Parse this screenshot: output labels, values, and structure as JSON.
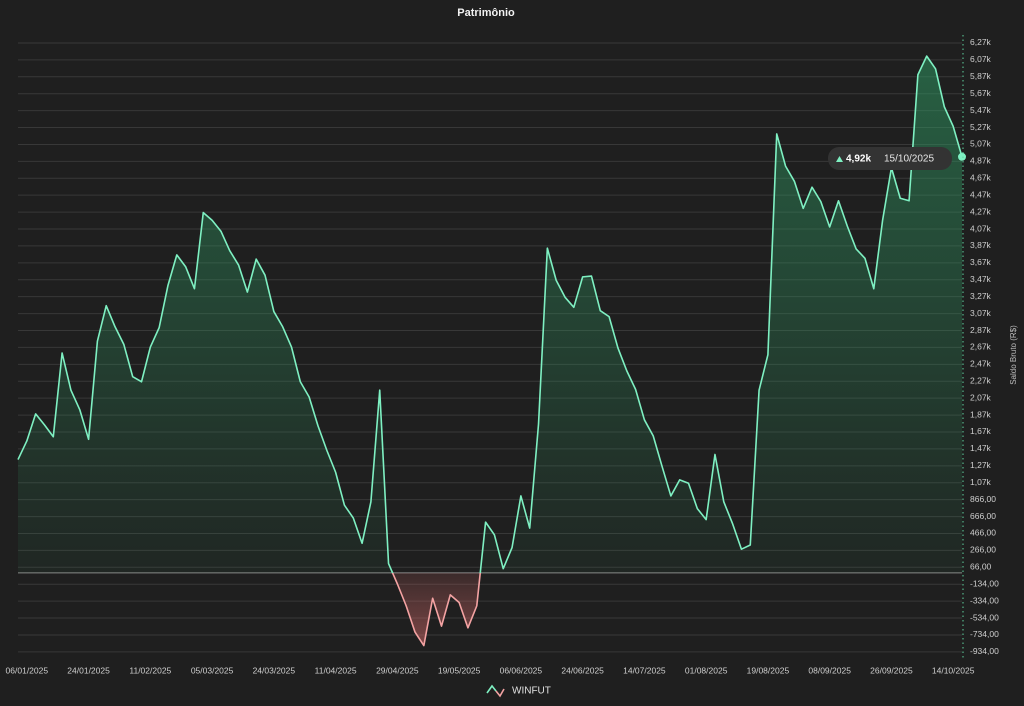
{
  "chart_data": {
    "type": "area-line",
    "title": "Patrimônio",
    "y_label": "Saldo Bruto (R$)",
    "categories": [
      null,
      "06/01/2025",
      null,
      null,
      null,
      null,
      null,
      null,
      "24/01/2025",
      null,
      null,
      null,
      null,
      null,
      null,
      "11/02/2025",
      null,
      null,
      null,
      null,
      null,
      null,
      "05/03/2025",
      null,
      null,
      null,
      null,
      null,
      null,
      "24/03/2025",
      null,
      null,
      null,
      null,
      null,
      null,
      "11/04/2025",
      null,
      null,
      null,
      null,
      null,
      null,
      "29/04/2025",
      null,
      null,
      null,
      null,
      null,
      null,
      "19/05/2025",
      null,
      null,
      null,
      null,
      null,
      null,
      "06/06/2025",
      null,
      null,
      null,
      null,
      null,
      null,
      "24/06/2025",
      null,
      null,
      null,
      null,
      null,
      null,
      "14/07/2025",
      null,
      null,
      null,
      null,
      null,
      null,
      "01/08/2025",
      null,
      null,
      null,
      null,
      null,
      null,
      "19/08/2025",
      null,
      null,
      null,
      null,
      null,
      null,
      "08/09/2025",
      null,
      null,
      null,
      null,
      null,
      null,
      "26/09/2025",
      null,
      null,
      null,
      null,
      null,
      null,
      "14/10/2025",
      null
    ],
    "series": [
      {
        "name": "WINFUT",
        "color": "#7ef0c2",
        "negative_color": "#f4a3a3",
        "values": [
          1340,
          1560,
          1880,
          1750,
          1610,
          2600,
          2160,
          1930,
          1580,
          2740,
          3160,
          2910,
          2700,
          2320,
          2260,
          2670,
          2900,
          3400,
          3760,
          3620,
          3360,
          4260,
          4170,
          4040,
          3810,
          3640,
          3320,
          3710,
          3520,
          3090,
          2910,
          2670,
          2260,
          2080,
          1740,
          1450,
          1190,
          800,
          650,
          350,
          840,
          2160,
          110,
          -130,
          -390,
          -700,
          -860,
          -300,
          -630,
          -260,
          -350,
          -650,
          -390,
          600,
          450,
          50,
          300,
          910,
          530,
          1760,
          3840,
          3460,
          3260,
          3140,
          3500,
          3510,
          3100,
          3030,
          2660,
          2390,
          2170,
          1810,
          1620,
          1260,
          910,
          1100,
          1060,
          760,
          630,
          1400,
          840,
          580,
          280,
          330,
          2160,
          2580,
          5190,
          4810,
          4630,
          4310,
          4560,
          4390,
          4090,
          4400,
          4100,
          3830,
          3720,
          3360,
          4170,
          4790,
          4430,
          4400,
          5890,
          6110,
          5960,
          5510,
          5280,
          4920
        ]
      }
    ],
    "ylim": [
      -1030,
      6360
    ],
    "yticks": [
      {
        "value": -934,
        "label": "-934,00"
      },
      {
        "value": -734,
        "label": "-734,00"
      },
      {
        "value": -534,
        "label": "-534,00"
      },
      {
        "value": -334,
        "label": "-334,00"
      },
      {
        "value": -134,
        "label": "-134,00"
      },
      {
        "value": 66,
        "label": "66,00"
      },
      {
        "value": 266,
        "label": "266,00"
      },
      {
        "value": 466,
        "label": "466,00"
      },
      {
        "value": 666,
        "label": "666,00"
      },
      {
        "value": 866,
        "label": "866,00"
      },
      {
        "value": 1066,
        "label": "1,07k"
      },
      {
        "value": 1266,
        "label": "1,27k"
      },
      {
        "value": 1466,
        "label": "1,47k"
      },
      {
        "value": 1666,
        "label": "1,67k"
      },
      {
        "value": 1866,
        "label": "1,87k"
      },
      {
        "value": 2066,
        "label": "2,07k"
      },
      {
        "value": 2266,
        "label": "2,27k"
      },
      {
        "value": 2466,
        "label": "2,47k"
      },
      {
        "value": 2666,
        "label": "2,67k"
      },
      {
        "value": 2866,
        "label": "2,87k"
      },
      {
        "value": 3066,
        "label": "3,07k"
      },
      {
        "value": 3266,
        "label": "3,27k"
      },
      {
        "value": 3466,
        "label": "3,47k"
      },
      {
        "value": 3666,
        "label": "3,67k"
      },
      {
        "value": 3866,
        "label": "3,87k"
      },
      {
        "value": 4066,
        "label": "4,07k"
      },
      {
        "value": 4266,
        "label": "4,27k"
      },
      {
        "value": 4466,
        "label": "4,47k"
      },
      {
        "value": 4666,
        "label": "4,67k"
      },
      {
        "value": 4866,
        "label": "4,87k"
      },
      {
        "value": 5066,
        "label": "5,07k"
      },
      {
        "value": 5266,
        "label": "5,27k"
      },
      {
        "value": 5466,
        "label": "5,47k"
      },
      {
        "value": 5666,
        "label": "5,67k"
      },
      {
        "value": 5866,
        "label": "5,87k"
      },
      {
        "value": 6066,
        "label": "6,07k"
      },
      {
        "value": 6266,
        "label": "6,27k"
      }
    ],
    "grid": true,
    "y_axis_side": "right",
    "legend": "bottom",
    "tooltip": {
      "label": "4,92k",
      "date": "15/10/2025"
    }
  }
}
